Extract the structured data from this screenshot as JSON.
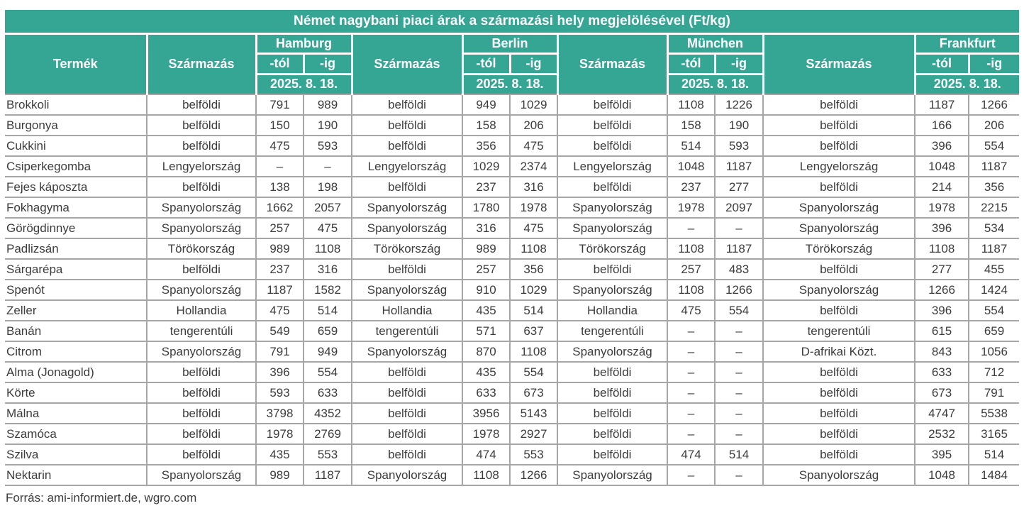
{
  "chart_data": {
    "type": "table",
    "title": "Német nagybani piaci árak a származási hely megjelölésével (Ft/kg)",
    "product_header": "Termék",
    "origin_header": "Származás",
    "from_header": "-tól",
    "to_header": "-ig",
    "date": "2025. 8. 18.",
    "cities": [
      "Hamburg",
      "Berlin",
      "München",
      "Frankfurt"
    ],
    "rows": [
      {
        "product": "Brokkoli",
        "markets": [
          {
            "origin": "belföldi",
            "from": "791",
            "to": "989"
          },
          {
            "origin": "belföldi",
            "from": "949",
            "to": "1029"
          },
          {
            "origin": "belföldi",
            "from": "1108",
            "to": "1226"
          },
          {
            "origin": "belföldi",
            "from": "1187",
            "to": "1266"
          }
        ]
      },
      {
        "product": "Burgonya",
        "markets": [
          {
            "origin": "belföldi",
            "from": "150",
            "to": "190"
          },
          {
            "origin": "belföldi",
            "from": "158",
            "to": "206"
          },
          {
            "origin": "belföldi",
            "from": "158",
            "to": "190"
          },
          {
            "origin": "belföldi",
            "from": "166",
            "to": "206"
          }
        ]
      },
      {
        "product": "Cukkini",
        "markets": [
          {
            "origin": "belföldi",
            "from": "475",
            "to": "593"
          },
          {
            "origin": "belföldi",
            "from": "356",
            "to": "475"
          },
          {
            "origin": "belföldi",
            "from": "514",
            "to": "593"
          },
          {
            "origin": "belföldi",
            "from": "396",
            "to": "554"
          }
        ]
      },
      {
        "product": "Csiperkegomba",
        "markets": [
          {
            "origin": "Lengyelország",
            "from": "–",
            "to": "–"
          },
          {
            "origin": "Lengyelország",
            "from": "1029",
            "to": "2374"
          },
          {
            "origin": "Lengyelország",
            "from": "1048",
            "to": "1187"
          },
          {
            "origin": "Lengyelország",
            "from": "1048",
            "to": "1187"
          }
        ]
      },
      {
        "product": "Fejes káposzta",
        "markets": [
          {
            "origin": "belföldi",
            "from": "138",
            "to": "198"
          },
          {
            "origin": "belföldi",
            "from": "237",
            "to": "316"
          },
          {
            "origin": "belföldi",
            "from": "237",
            "to": "277"
          },
          {
            "origin": "belföldi",
            "from": "214",
            "to": "356"
          }
        ]
      },
      {
        "product": "Fokhagyma",
        "markets": [
          {
            "origin": "Spanyolország",
            "from": "1662",
            "to": "2057"
          },
          {
            "origin": "Spanyolország",
            "from": "1780",
            "to": "1978"
          },
          {
            "origin": "Spanyolország",
            "from": "1978",
            "to": "2097"
          },
          {
            "origin": "Spanyolország",
            "from": "1978",
            "to": "2215"
          }
        ]
      },
      {
        "product": "Görögdinnye",
        "markets": [
          {
            "origin": "Spanyolország",
            "from": "257",
            "to": "475"
          },
          {
            "origin": "Spanyolország",
            "from": "316",
            "to": "475"
          },
          {
            "origin": "Spanyolország",
            "from": "–",
            "to": "–"
          },
          {
            "origin": "Spanyolország",
            "from": "396",
            "to": "534"
          }
        ]
      },
      {
        "product": "Padlizsán",
        "markets": [
          {
            "origin": "Törökország",
            "from": "989",
            "to": "1108"
          },
          {
            "origin": "Törökország",
            "from": "989",
            "to": "1108"
          },
          {
            "origin": "Törökország",
            "from": "1108",
            "to": "1187"
          },
          {
            "origin": "Törökország",
            "from": "1108",
            "to": "1187"
          }
        ]
      },
      {
        "product": "Sárgarépa",
        "markets": [
          {
            "origin": "belföldi",
            "from": "237",
            "to": "316"
          },
          {
            "origin": "belföldi",
            "from": "257",
            "to": "356"
          },
          {
            "origin": "belföldi",
            "from": "257",
            "to": "483"
          },
          {
            "origin": "belföldi",
            "from": "277",
            "to": "455"
          }
        ]
      },
      {
        "product": "Spenót",
        "markets": [
          {
            "origin": "Spanyolország",
            "from": "1187",
            "to": "1582"
          },
          {
            "origin": "Spanyolország",
            "from": "910",
            "to": "1029"
          },
          {
            "origin": "Spanyolország",
            "from": "1108",
            "to": "1266"
          },
          {
            "origin": "Spanyolország",
            "from": "1266",
            "to": "1424"
          }
        ]
      },
      {
        "product": "Zeller",
        "markets": [
          {
            "origin": "Hollandia",
            "from": "475",
            "to": "514"
          },
          {
            "origin": "Hollandia",
            "from": "435",
            "to": "514"
          },
          {
            "origin": "Hollandia",
            "from": "475",
            "to": "554"
          },
          {
            "origin": "belföldi",
            "from": "396",
            "to": "554"
          }
        ]
      },
      {
        "product": "Banán",
        "markets": [
          {
            "origin": "tengerentúli",
            "from": "549",
            "to": "659"
          },
          {
            "origin": "tengerentúli",
            "from": "571",
            "to": "637"
          },
          {
            "origin": "tengerentúli",
            "from": "–",
            "to": "–"
          },
          {
            "origin": "tengerentúli",
            "from": "615",
            "to": "659"
          }
        ]
      },
      {
        "product": "Citrom",
        "markets": [
          {
            "origin": "Spanyolország",
            "from": "791",
            "to": "949"
          },
          {
            "origin": "Spanyolország",
            "from": "870",
            "to": "1108"
          },
          {
            "origin": "Spanyolország",
            "from": "–",
            "to": "–"
          },
          {
            "origin": "D-afrikai Közt.",
            "from": "843",
            "to": "1056"
          }
        ]
      },
      {
        "product": "Alma (Jonagold)",
        "markets": [
          {
            "origin": "belföldi",
            "from": "396",
            "to": "554"
          },
          {
            "origin": "belföldi",
            "from": "435",
            "to": "554"
          },
          {
            "origin": "belföldi",
            "from": "–",
            "to": "–"
          },
          {
            "origin": "belföldi",
            "from": "633",
            "to": "712"
          }
        ]
      },
      {
        "product": "Körte",
        "markets": [
          {
            "origin": "belföldi",
            "from": "593",
            "to": "633"
          },
          {
            "origin": "belföldi",
            "from": "633",
            "to": "673"
          },
          {
            "origin": "belföldi",
            "from": "–",
            "to": "–"
          },
          {
            "origin": "belföldi",
            "from": "673",
            "to": "791"
          }
        ]
      },
      {
        "product": "Málna",
        "markets": [
          {
            "origin": "belföldi",
            "from": "3798",
            "to": "4352"
          },
          {
            "origin": "belföldi",
            "from": "3956",
            "to": "5143"
          },
          {
            "origin": "belföldi",
            "from": "–",
            "to": "–"
          },
          {
            "origin": "belföldi",
            "from": "4747",
            "to": "5538"
          }
        ]
      },
      {
        "product": "Szamóca",
        "markets": [
          {
            "origin": "belföldi",
            "from": "1978",
            "to": "2769"
          },
          {
            "origin": "belföldi",
            "from": "1978",
            "to": "2927"
          },
          {
            "origin": "belföldi",
            "from": "–",
            "to": "–"
          },
          {
            "origin": "belföldi",
            "from": "2532",
            "to": "3165"
          }
        ]
      },
      {
        "product": "Szilva",
        "markets": [
          {
            "origin": "belföldi",
            "from": "435",
            "to": "553"
          },
          {
            "origin": "belföldi",
            "from": "474",
            "to": "553"
          },
          {
            "origin": "belföldi",
            "from": "474",
            "to": "514"
          },
          {
            "origin": "belföldi",
            "from": "395",
            "to": "514"
          }
        ]
      },
      {
        "product": "Nektarin",
        "markets": [
          {
            "origin": "Spanyolország",
            "from": "989",
            "to": "1187"
          },
          {
            "origin": "Spanyolország",
            "from": "1108",
            "to": "1266"
          },
          {
            "origin": "Spanyolország",
            "from": "–",
            "to": "–"
          },
          {
            "origin": "Spanyolország",
            "from": "1048",
            "to": "1484"
          }
        ]
      }
    ]
  },
  "footer": {
    "source": "Forrás: ami-informiert.de, wgro.com"
  },
  "colors": {
    "header_bg": "#35a594",
    "header_text": "#ffffff",
    "grid_border": "#a6a6a6",
    "body_text": "#3c3c3c"
  }
}
